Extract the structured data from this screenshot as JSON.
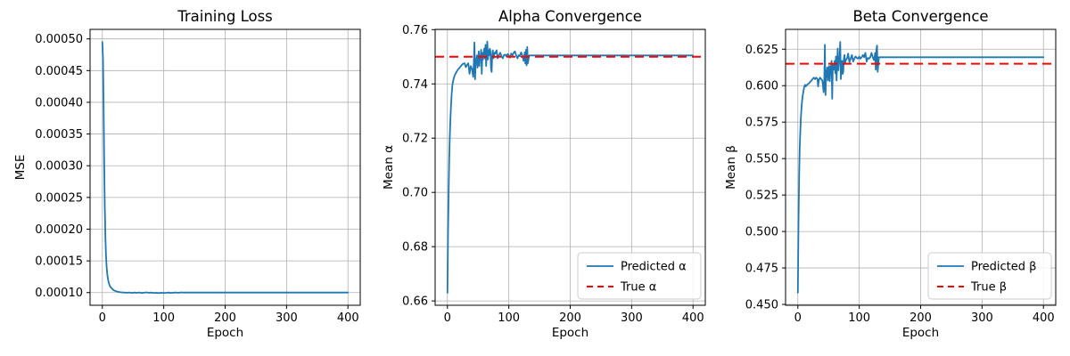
{
  "colors": {
    "line_blue": "#1f77b4",
    "line_red": "#ff0000",
    "grid": "#b0b0b0",
    "spine": "#000000",
    "legend_border": "#cccccc",
    "background": "#ffffff"
  },
  "chart_data": [
    {
      "type": "line",
      "title": "Training Loss",
      "xlabel": "Epoch",
      "ylabel": "MSE",
      "xlim": [
        -20,
        420
      ],
      "ylim": [
        8e-05,
        0.000515
      ],
      "xticks": [
        0,
        100,
        200,
        300,
        400
      ],
      "xtick_labels": [
        "0",
        "100",
        "200",
        "300",
        "400"
      ],
      "yticks": [
        0.0001,
        0.00015,
        0.0002,
        0.00025,
        0.0003,
        0.00035,
        0.0004,
        0.00045,
        0.0005
      ],
      "ytick_labels": [
        "0.00010",
        "0.00015",
        "0.00020",
        "0.00025",
        "0.00030",
        "0.00035",
        "0.00040",
        "0.00045",
        "0.00050"
      ],
      "grid": true,
      "legend": null,
      "true_line": null,
      "series": [
        {
          "name": "MSE",
          "color": "#1f77b4",
          "points": [
            [
              0,
              0.000495
            ],
            [
              1,
              0.000468
            ],
            [
              2,
              0.000395
            ],
            [
              3,
              0.00031
            ],
            [
              4,
              0.000238
            ],
            [
              5,
              0.000188
            ],
            [
              6,
              0.000158
            ],
            [
              7,
              0.00014
            ],
            [
              8,
              0.000129
            ],
            [
              9,
              0.000122
            ],
            [
              10,
              0.000117
            ],
            [
              12,
              0.000111
            ],
            [
              14,
              0.000108
            ],
            [
              16,
              0.000106
            ],
            [
              18,
              0.000104
            ],
            [
              20,
              0.000103
            ],
            [
              23,
              0.000102
            ],
            [
              26,
              0.000101
            ],
            [
              30,
              0.0001005
            ],
            [
              35,
              0.0001
            ],
            [
              40,
              9.98e-05
            ],
            [
              44,
              0.0001002
            ],
            [
              48,
              9.95e-05
            ],
            [
              52,
              0.0001
            ],
            [
              56,
              9.96e-05
            ],
            [
              60,
              0.0001002
            ],
            [
              64,
              9.94e-05
            ],
            [
              68,
              9.98e-05
            ],
            [
              72,
              0.0001003
            ],
            [
              76,
              9.96e-05
            ],
            [
              80,
              0.0001
            ],
            [
              84,
              9.94e-05
            ],
            [
              88,
              9.97e-05
            ],
            [
              92,
              9.92e-05
            ],
            [
              96,
              9.96e-05
            ],
            [
              100,
              9.93e-05
            ],
            [
              104,
              9.97e-05
            ],
            [
              108,
              0.0001001
            ],
            [
              112,
              9.95e-05
            ],
            [
              116,
              9.99e-05
            ],
            [
              120,
              0.0001002
            ],
            [
              124,
              9.96e-05
            ],
            [
              128,
              0.0001004
            ],
            [
              130,
              0.0001
            ],
            [
              135,
              0.0001
            ],
            [
              400,
              0.0001
            ]
          ]
        }
      ]
    },
    {
      "type": "line",
      "title": "Alpha Convergence",
      "xlabel": "Epoch",
      "ylabel": "Mean α",
      "xlim": [
        -20,
        420
      ],
      "ylim": [
        0.6584,
        0.7601
      ],
      "xticks": [
        0,
        100,
        200,
        300,
        400
      ],
      "xtick_labels": [
        "0",
        "100",
        "200",
        "300",
        "400"
      ],
      "yticks": [
        0.66,
        0.68,
        0.7,
        0.72,
        0.74,
        0.76
      ],
      "ytick_labels": [
        "0.66",
        "0.68",
        "0.70",
        "0.72",
        "0.74",
        "0.76"
      ],
      "grid": true,
      "true_line": {
        "label": "True α",
        "value": 0.75,
        "color": "#ff0000"
      },
      "legend": {
        "position": "lower right",
        "entries": [
          {
            "label": "Predicted α",
            "color": "#1f77b4",
            "dash": false
          },
          {
            "label": "True α",
            "color": "#ff0000",
            "dash": true
          }
        ]
      },
      "series": [
        {
          "name": "Predicted α",
          "color": "#1f77b4",
          "points": [
            [
              0,
              0.663
            ],
            [
              1,
              0.686
            ],
            [
              2,
              0.701
            ],
            [
              3,
              0.7125
            ],
            [
              4,
              0.721
            ],
            [
              5,
              0.7275
            ],
            [
              6,
              0.7325
            ],
            [
              7,
              0.7365
            ],
            [
              8,
              0.7393
            ],
            [
              9,
              0.7408
            ],
            [
              10,
              0.7418
            ],
            [
              12,
              0.7432
            ],
            [
              14,
              0.7441
            ],
            [
              16,
              0.7449
            ],
            [
              18,
              0.7455
            ],
            [
              20,
              0.746
            ],
            [
              22,
              0.7466
            ],
            [
              24,
              0.7471
            ],
            [
              26,
              0.7475
            ],
            [
              28,
              0.7476
            ],
            [
              30,
              0.7462
            ],
            [
              32,
              0.747
            ],
            [
              34,
              0.7476
            ],
            [
              36,
              0.7437
            ],
            [
              38,
              0.7466
            ],
            [
              40,
              0.7455
            ],
            [
              42,
              0.7426
            ],
            [
              43,
              0.748
            ],
            [
              44,
              0.7553
            ],
            [
              45,
              0.7417
            ],
            [
              46,
              0.747
            ],
            [
              47,
              0.7487
            ],
            [
              48,
              0.7505
            ],
            [
              49,
              0.746
            ],
            [
              50,
              0.7494
            ],
            [
              51,
              0.752
            ],
            [
              52,
              0.7466
            ],
            [
              53,
              0.75
            ],
            [
              54,
              0.7506
            ],
            [
              55,
              0.7526
            ],
            [
              56,
              0.7437
            ],
            [
              57,
              0.7514
            ],
            [
              58,
              0.749
            ],
            [
              59,
              0.7516
            ],
            [
              60,
              0.753
            ],
            [
              61,
              0.7494
            ],
            [
              62,
              0.7544
            ],
            [
              63,
              0.7466
            ],
            [
              64,
              0.751
            ],
            [
              65,
              0.7556
            ],
            [
              66,
              0.749
            ],
            [
              67,
              0.7524
            ],
            [
              68,
              0.7506
            ],
            [
              69,
              0.753
            ],
            [
              70,
              0.752
            ],
            [
              71,
              0.7456
            ],
            [
              72,
              0.7444
            ],
            [
              73,
              0.7505
            ],
            [
              74,
              0.7524
            ],
            [
              75,
              0.7494
            ],
            [
              76,
              0.7506
            ],
            [
              77,
              0.7515
            ],
            [
              78,
              0.7512
            ],
            [
              80,
              0.7524
            ],
            [
              82,
              0.7494
            ],
            [
              84,
              0.7506
            ],
            [
              86,
              0.7515
            ],
            [
              88,
              0.7502
            ],
            [
              90,
              0.7494
            ],
            [
              92,
              0.7506
            ],
            [
              94,
              0.7508
            ],
            [
              96,
              0.7502
            ],
            [
              98,
              0.751
            ],
            [
              100,
              0.7505
            ],
            [
              102,
              0.7497
            ],
            [
              104,
              0.7512
            ],
            [
              106,
              0.7505
            ],
            [
              108,
              0.7515
            ],
            [
              110,
              0.752
            ],
            [
              112,
              0.7505
            ],
            [
              114,
              0.7494
            ],
            [
              116,
              0.7506
            ],
            [
              118,
              0.7502
            ],
            [
              120,
              0.7516
            ],
            [
              122,
              0.7505
            ],
            [
              124,
              0.7485
            ],
            [
              126,
              0.7516
            ],
            [
              127,
              0.7475
            ],
            [
              128,
              0.7526
            ],
            [
              129,
              0.7468
            ],
            [
              130,
              0.7536
            ],
            [
              131,
              0.7476
            ],
            [
              133,
              0.7505
            ],
            [
              400,
              0.7505
            ]
          ]
        }
      ]
    },
    {
      "type": "line",
      "title": "Beta Convergence",
      "xlabel": "Epoch",
      "ylabel": "Mean β",
      "xlim": [
        -20,
        420
      ],
      "ylim": [
        0.4494,
        0.6386
      ],
      "xticks": [
        0,
        100,
        200,
        300,
        400
      ],
      "xtick_labels": [
        "0",
        "100",
        "200",
        "300",
        "400"
      ],
      "yticks": [
        0.45,
        0.475,
        0.5,
        0.525,
        0.55,
        0.575,
        0.6,
        0.625
      ],
      "ytick_labels": [
        "0.450",
        "0.475",
        "0.500",
        "0.525",
        "0.550",
        "0.575",
        "0.600",
        "0.625"
      ],
      "grid": true,
      "true_line": {
        "label": "True β",
        "value": 0.615,
        "color": "#ff0000"
      },
      "legend": {
        "position": "lower right",
        "entries": [
          {
            "label": "Predicted β",
            "color": "#1f77b4",
            "dash": false
          },
          {
            "label": "True β",
            "color": "#ff0000",
            "dash": true
          }
        ]
      },
      "series": [
        {
          "name": "Predicted β",
          "color": "#1f77b4",
          "points": [
            [
              0,
              0.458
            ],
            [
              1,
              0.506
            ],
            [
              2,
              0.536
            ],
            [
              3,
              0.5555
            ],
            [
              4,
              0.568
            ],
            [
              5,
              0.578
            ],
            [
              6,
              0.585
            ],
            [
              7,
              0.59
            ],
            [
              8,
              0.5935
            ],
            [
              9,
              0.596
            ],
            [
              10,
              0.5985
            ],
            [
              11,
              0.6
            ],
            [
              12,
              0.6005
            ],
            [
              13,
              0.5995
            ],
            [
              14,
              0.6
            ],
            [
              15,
              0.6005
            ],
            [
              16,
              0.601
            ],
            [
              18,
              0.6015
            ],
            [
              20,
              0.6025
            ],
            [
              22,
              0.6035
            ],
            [
              24,
              0.6045
            ],
            [
              26,
              0.6055
            ],
            [
              28,
              0.6045
            ],
            [
              30,
              0.6055
            ],
            [
              32,
              0.6045
            ],
            [
              33,
              0.5995
            ],
            [
              34,
              0.6035
            ],
            [
              36,
              0.6055
            ],
            [
              38,
              0.6045
            ],
            [
              40,
              0.6035
            ],
            [
              42,
              0.5955
            ],
            [
              43,
              0.603
            ],
            [
              44,
              0.628
            ],
            [
              45,
              0.5935
            ],
            [
              46,
              0.605
            ],
            [
              47,
              0.6095
            ],
            [
              48,
              0.6125
            ],
            [
              49,
              0.6035
            ],
            [
              50,
              0.611
            ],
            [
              51,
              0.6135
            ],
            [
              52,
              0.603
            ],
            [
              53,
              0.6115
            ],
            [
              54,
              0.6135
            ],
            [
              55,
              0.617
            ],
            [
              56,
              0.591
            ],
            [
              57,
              0.6135
            ],
            [
              58,
              0.6145
            ],
            [
              59,
              0.611
            ],
            [
              60,
              0.617
            ],
            [
              61,
              0.6085
            ],
            [
              62,
              0.62
            ],
            [
              63,
              0.6035
            ],
            [
              64,
              0.6135
            ],
            [
              65,
              0.6255
            ],
            [
              66,
              0.6105
            ],
            [
              67,
              0.616
            ],
            [
              68,
              0.6195
            ],
            [
              69,
              0.63
            ],
            [
              70,
              0.6045
            ],
            [
              71,
              0.6165
            ],
            [
              72,
              0.617
            ],
            [
              73,
              0.608
            ],
            [
              74,
              0.6095
            ],
            [
              75,
              0.6185
            ],
            [
              76,
              0.621
            ],
            [
              77,
              0.6155
            ],
            [
              78,
              0.6175
            ],
            [
              80,
              0.6185
            ],
            [
              82,
              0.622
            ],
            [
              84,
              0.616
            ],
            [
              86,
              0.6185
            ],
            [
              88,
              0.621
            ],
            [
              90,
              0.6165
            ],
            [
              92,
              0.6185
            ],
            [
              94,
              0.62
            ],
            [
              96,
              0.619
            ],
            [
              98,
              0.6185
            ],
            [
              100,
              0.62
            ],
            [
              102,
              0.6185
            ],
            [
              104,
              0.6195
            ],
            [
              106,
              0.621
            ],
            [
              108,
              0.6195
            ],
            [
              110,
              0.6225
            ],
            [
              112,
              0.6165
            ],
            [
              114,
              0.619
            ],
            [
              116,
              0.6185
            ],
            [
              118,
              0.6195
            ],
            [
              120,
              0.6225
            ],
            [
              122,
              0.6195
            ],
            [
              124,
              0.6175
            ],
            [
              126,
              0.6225
            ],
            [
              127,
              0.611
            ],
            [
              128,
              0.6245
            ],
            [
              129,
              0.6275
            ],
            [
              130,
              0.6095
            ],
            [
              132,
              0.6195
            ],
            [
              400,
              0.6195
            ]
          ]
        }
      ]
    }
  ]
}
